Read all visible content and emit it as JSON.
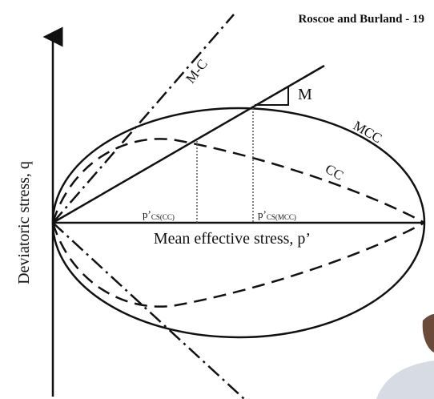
{
  "header": {
    "title": "Roscoe and Burland - 19"
  },
  "diagram": {
    "y_axis_label": "Deviatoric stress, q",
    "x_axis_label": "Mean effective stress, p’",
    "mc_label": "M-C",
    "slope_label": "M",
    "mcc_label": "MCC",
    "cc_label": "CC",
    "p_cs_cc": {
      "main": "p’",
      "sub": "CS(CC)"
    },
    "p_cs_mcc": {
      "main": "p’",
      "sub": "CS(MCC)"
    }
  }
}
